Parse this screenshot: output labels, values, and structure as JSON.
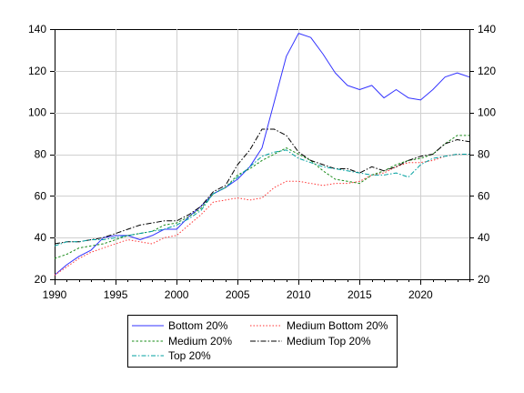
{
  "chart_data": {
    "type": "line",
    "title": "",
    "xlabel": "",
    "ylabel": "",
    "xlim": [
      1990,
      2024
    ],
    "ylim": [
      20,
      140
    ],
    "x_ticks": [
      1990,
      1995,
      2000,
      2005,
      2010,
      2015,
      2020
    ],
    "y_ticks": [
      20,
      40,
      60,
      80,
      100,
      120,
      140
    ],
    "grid": true,
    "right_axis_mirrored": true,
    "legend_position": "bottom-center",
    "x": [
      1990,
      1991,
      1992,
      1993,
      1994,
      1995,
      1996,
      1997,
      1998,
      1999,
      2000,
      2001,
      2002,
      2003,
      2004,
      2005,
      2006,
      2007,
      2008,
      2009,
      2010,
      2011,
      2012,
      2013,
      2014,
      2015,
      2016,
      2017,
      2018,
      2019,
      2020,
      2021,
      2022,
      2023,
      2024
    ],
    "series": [
      {
        "name": "Bottom 20%",
        "color": "#3333ff",
        "dash": "",
        "values": [
          22,
          27,
          31,
          34,
          40,
          41,
          41,
          39,
          41,
          44,
          44,
          50,
          55,
          61,
          64,
          68,
          74,
          83,
          105,
          127,
          138,
          136,
          128,
          119,
          113,
          111,
          113,
          107,
          111,
          107,
          106,
          111,
          117,
          119,
          117
        ]
      },
      {
        "name": "Medium Bottom 20%",
        "color": "#ff3333",
        "dash": "1.5,2",
        "values": [
          22,
          26,
          30,
          33,
          35,
          37,
          39,
          38,
          37,
          40,
          41,
          46,
          51,
          57,
          58,
          59,
          58,
          59,
          64,
          67,
          67,
          66,
          65,
          66,
          66,
          67,
          70,
          71,
          74,
          76,
          76,
          77,
          79,
          80,
          80
        ]
      },
      {
        "name": "Medium 20%",
        "color": "#1a8c1a",
        "dash": "2.5,2",
        "values": [
          30,
          32,
          35,
          36,
          37,
          39,
          41,
          42,
          43,
          46,
          47,
          50,
          54,
          61,
          64,
          70,
          73,
          77,
          80,
          83,
          80,
          77,
          72,
          68,
          67,
          66,
          70,
          72,
          75,
          77,
          78,
          80,
          85,
          89,
          89
        ]
      },
      {
        "name": "Medium Top 20%",
        "color": "#000000",
        "dash": "6,2,1.5,2",
        "values": [
          37,
          38,
          38,
          39,
          40,
          42,
          44,
          46,
          47,
          48,
          48,
          51,
          55,
          62,
          65,
          75,
          82,
          92,
          92,
          89,
          81,
          77,
          75,
          73,
          73,
          71,
          74,
          72,
          74,
          77,
          79,
          80,
          85,
          87,
          86
        ]
      },
      {
        "name": "Top 20%",
        "color": "#00a0a0",
        "dash": "5,2,1.5,2",
        "values": [
          36,
          38,
          38,
          39,
          39,
          40,
          41,
          42,
          43,
          44,
          46,
          49,
          53,
          61,
          64,
          69,
          74,
          79,
          81,
          82,
          78,
          76,
          74,
          73,
          72,
          71,
          70,
          70,
          71,
          69,
          75,
          78,
          79,
          80,
          80
        ]
      }
    ]
  }
}
